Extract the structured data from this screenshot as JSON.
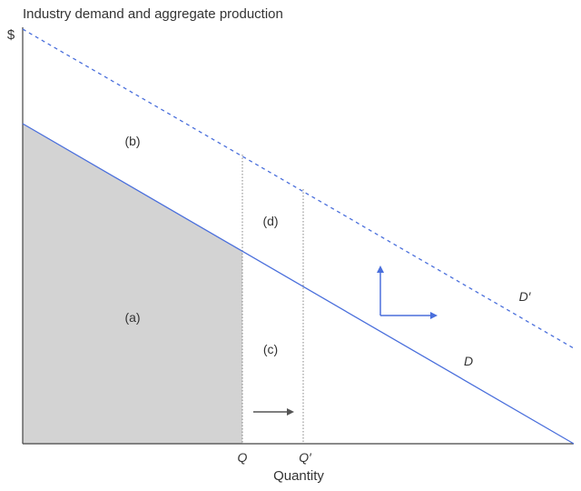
{
  "diagram": {
    "title": "Industry demand and aggregate production",
    "y_axis_label": "$",
    "x_axis_label": "Quantity",
    "q_label": "Q",
    "q_prime_label": "Q′",
    "demand_label": "D",
    "demand_shifted_label": "D′",
    "regions": {
      "a": "(a)",
      "b": "(b)",
      "c": "(c)",
      "d": "(d)"
    },
    "colors": {
      "demand_line": "#4a6fdc",
      "shaded_area": "#d3d3d3",
      "axis": "#444444",
      "shift_arrows": "#4a6fdc",
      "quantity_arrow": "#555555",
      "guide_lines": "#666666"
    },
    "icons": {
      "shift_up": "arrow-up-icon",
      "shift_right": "arrow-right-icon",
      "quantity_increase": "arrow-right-icon"
    }
  }
}
